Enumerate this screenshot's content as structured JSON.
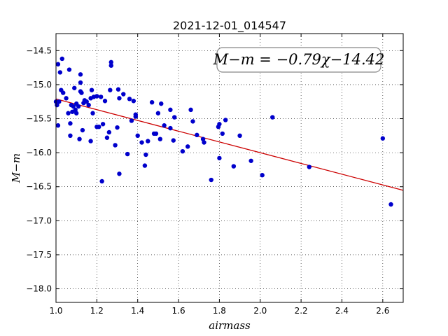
{
  "chart_data": {
    "type": "scatter",
    "title": "2021-12-01_014547",
    "xlabel": "airmass",
    "ylabel": "M−m",
    "xlim": [
      1.0,
      2.7
    ],
    "ylim": [
      -18.2,
      -14.25
    ],
    "y_inverted": true,
    "grid": true,
    "grid_style": "dotted",
    "x_ticks": [
      "1.0",
      "1.2",
      "1.4",
      "1.6",
      "1.8",
      "2.0",
      "2.2",
      "2.4",
      "2.6"
    ],
    "y_ticks": [
      "−14.5",
      "−15.0",
      "−15.5",
      "−16.0",
      "−16.5",
      "−17.0",
      "−17.5",
      "−18.0"
    ],
    "annotation": "M−m = −0.79χ−14.42",
    "annotation_position": "top-right",
    "fit": {
      "slope": -0.79,
      "intercept": -14.42,
      "color": "#cc0000"
    },
    "point_color": "#0000cc",
    "points": [
      [
        1.0,
        -15.25
      ],
      [
        1.005,
        -15.3
      ],
      [
        1.01,
        -14.7
      ],
      [
        1.01,
        -15.6
      ],
      [
        1.015,
        -15.25
      ],
      [
        1.02,
        -14.82
      ],
      [
        1.025,
        -15.08
      ],
      [
        1.03,
        -14.62
      ],
      [
        1.035,
        -15.12
      ],
      [
        1.05,
        -15.2
      ],
      [
        1.06,
        -15.42
      ],
      [
        1.065,
        -14.78
      ],
      [
        1.07,
        -15.57
      ],
      [
        1.07,
        -15.75
      ],
      [
        1.075,
        -15.3
      ],
      [
        1.08,
        -15.4
      ],
      [
        1.085,
        -15.32
      ],
      [
        1.09,
        -15.05
      ],
      [
        1.095,
        -15.37
      ],
      [
        1.1,
        -15.28
      ],
      [
        1.1,
        -15.42
      ],
      [
        1.11,
        -15.32
      ],
      [
        1.115,
        -15.8
      ],
      [
        1.12,
        -14.85
      ],
      [
        1.12,
        -14.97
      ],
      [
        1.12,
        -15.1
      ],
      [
        1.125,
        -15.12
      ],
      [
        1.13,
        -15.67
      ],
      [
        1.135,
        -15.27
      ],
      [
        1.14,
        -15.23
      ],
      [
        1.15,
        -15.25
      ],
      [
        1.16,
        -15.3
      ],
      [
        1.17,
        -15.83
      ],
      [
        1.17,
        -15.2
      ],
      [
        1.175,
        -15.08
      ],
      [
        1.18,
        -15.42
      ],
      [
        1.185,
        -15.18
      ],
      [
        1.2,
        -15.62
      ],
      [
        1.2,
        -15.17
      ],
      [
        1.21,
        -15.62
      ],
      [
        1.22,
        -15.18
      ],
      [
        1.225,
        -16.42
      ],
      [
        1.23,
        -15.58
      ],
      [
        1.24,
        -15.24
      ],
      [
        1.25,
        -15.78
      ],
      [
        1.26,
        -15.7
      ],
      [
        1.265,
        -15.08
      ],
      [
        1.27,
        -14.67
      ],
      [
        1.27,
        -14.72
      ],
      [
        1.29,
        -15.89
      ],
      [
        1.3,
        -15.63
      ],
      [
        1.305,
        -15.07
      ],
      [
        1.31,
        -15.2
      ],
      [
        1.31,
        -16.31
      ],
      [
        1.33,
        -15.14
      ],
      [
        1.35,
        -16.02
      ],
      [
        1.36,
        -15.21
      ],
      [
        1.37,
        -15.53
      ],
      [
        1.38,
        -15.24
      ],
      [
        1.39,
        -15.44
      ],
      [
        1.39,
        -15.47
      ],
      [
        1.4,
        -15.75
      ],
      [
        1.42,
        -15.85
      ],
      [
        1.435,
        -16.19
      ],
      [
        1.44,
        -16.03
      ],
      [
        1.45,
        -15.83
      ],
      [
        1.47,
        -15.26
      ],
      [
        1.48,
        -15.72
      ],
      [
        1.49,
        -15.72
      ],
      [
        1.5,
        -15.42
      ],
      [
        1.51,
        -15.8
      ],
      [
        1.515,
        -15.28
      ],
      [
        1.53,
        -15.6
      ],
      [
        1.56,
        -15.64
      ],
      [
        1.56,
        -15.37
      ],
      [
        1.575,
        -15.82
      ],
      [
        1.58,
        -15.48
      ],
      [
        1.62,
        -15.98
      ],
      [
        1.645,
        -15.91
      ],
      [
        1.66,
        -15.37
      ],
      [
        1.67,
        -15.54
      ],
      [
        1.69,
        -15.74
      ],
      [
        1.72,
        -15.8
      ],
      [
        1.725,
        -15.85
      ],
      [
        1.76,
        -16.4
      ],
      [
        1.795,
        -15.62
      ],
      [
        1.8,
        -15.58
      ],
      [
        1.8,
        -16.08
      ],
      [
        1.815,
        -15.72
      ],
      [
        1.83,
        -15.52
      ],
      [
        1.87,
        -16.2
      ],
      [
        1.9,
        -15.75
      ],
      [
        1.955,
        -16.12
      ],
      [
        2.01,
        -16.33
      ],
      [
        2.06,
        -15.48
      ],
      [
        2.24,
        -16.21
      ],
      [
        2.6,
        -15.79
      ],
      [
        2.64,
        -16.76
      ]
    ]
  }
}
